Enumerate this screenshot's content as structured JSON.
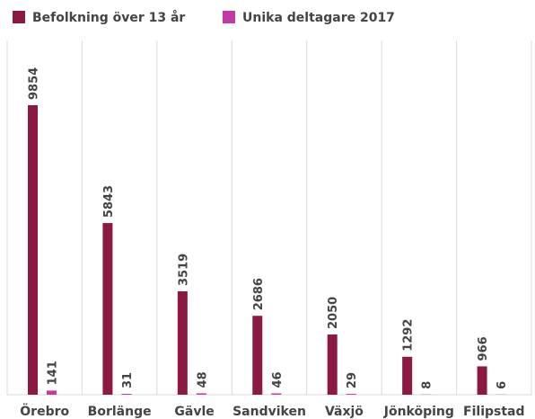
{
  "chart_data": {
    "type": "bar",
    "categories": [
      "Örebro",
      "Borlänge",
      "Gävle",
      "Sandviken",
      "Växjö",
      "Jönköping",
      "Filipstad"
    ],
    "series": [
      {
        "name": "Befolkning över 13 år",
        "color": "#8c1943",
        "values": [
          9854,
          5843,
          3519,
          2686,
          2050,
          1292,
          966
        ]
      },
      {
        "name": "Unika deltagare 2017",
        "color": "#c23aa6",
        "values": [
          141,
          31,
          48,
          46,
          29,
          8,
          6
        ]
      }
    ],
    "grid": true,
    "legend": "top"
  }
}
